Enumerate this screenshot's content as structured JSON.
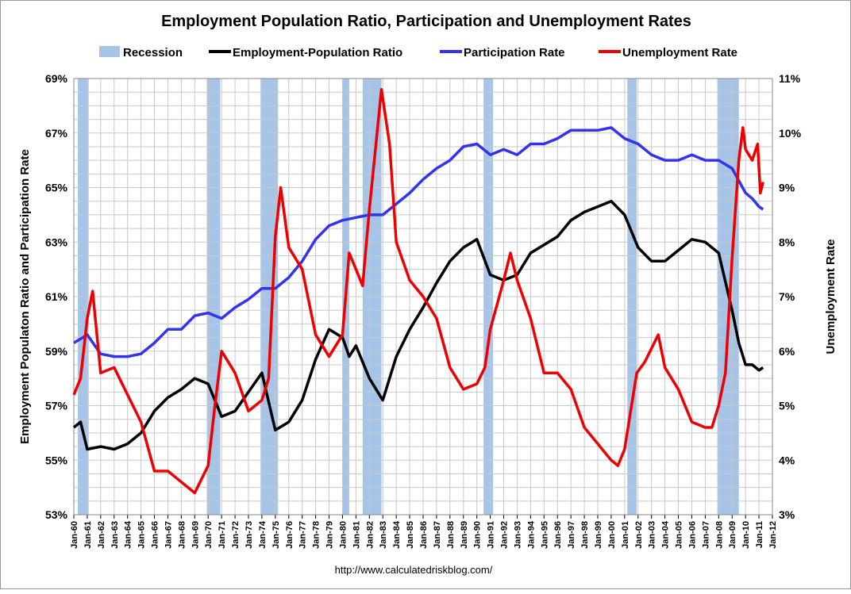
{
  "chart_data": {
    "type": "line",
    "title": "Employment Population Ratio, Participation and Unemployment Rates",
    "ylabel": "Employment Populaton Ratio and Participation Rate",
    "y2label": "Unemployment Rate",
    "footer": "http://www.calculatedriskblog.com/",
    "ylim": [
      53,
      69
    ],
    "y2lim": [
      3,
      11
    ],
    "yticks": [
      "53%",
      "55%",
      "57%",
      "59%",
      "61%",
      "63%",
      "65%",
      "67%",
      "69%"
    ],
    "y2ticks": [
      "3%",
      "4%",
      "5%",
      "6%",
      "7%",
      "8%",
      "9%",
      "10%",
      "11%"
    ],
    "xlim": [
      1960,
      2012
    ],
    "xticks": [
      "Jan-60",
      "Jan-61",
      "Jan-62",
      "Jan-63",
      "Jan-64",
      "Jan-65",
      "Jan-66",
      "Jan-67",
      "Jan-68",
      "Jan-69",
      "Jan-70",
      "Jan-71",
      "Jan-72",
      "Jan-73",
      "Jan-74",
      "Jan-75",
      "Jan-76",
      "Jan-77",
      "Jan-78",
      "Jan-79",
      "Jan-80",
      "Jan-81",
      "Jan-82",
      "Jan-83",
      "Jan-84",
      "Jan-85",
      "Jan-86",
      "Jan-87",
      "Jan-88",
      "Jan-89",
      "Jan-90",
      "Jan-91",
      "Jan-92",
      "Jan-93",
      "Jan-94",
      "Jan-95",
      "Jan-96",
      "Jan-97",
      "Jan-98",
      "Jan-99",
      "Jan-00",
      "Jan-01",
      "Jan-02",
      "Jan-03",
      "Jan-04",
      "Jan-05",
      "Jan-06",
      "Jan-07",
      "Jan-08",
      "Jan-09",
      "Jan-10",
      "Jan-11",
      "Jan-12"
    ],
    "grid": true,
    "legend_position": "top",
    "recession": {
      "name": "Recession",
      "color": "#A6C3E8",
      "periods": [
        [
          1960.3,
          1961.1
        ],
        [
          1969.9,
          1970.9
        ],
        [
          1973.9,
          1975.2
        ],
        [
          1980.0,
          1980.5
        ],
        [
          1981.5,
          1982.9
        ],
        [
          1990.5,
          1991.2
        ],
        [
          2001.2,
          2001.9
        ],
        [
          2007.9,
          2009.5
        ]
      ]
    },
    "series": [
      {
        "name": "Employment-Population Ratio",
        "color": "#000000",
        "axis": "left",
        "x": [
          1960,
          1960.5,
          1961,
          1962,
          1963,
          1964,
          1965,
          1966,
          1967,
          1968,
          1969,
          1970,
          1971,
          1972,
          1973,
          1974,
          1975,
          1976,
          1977,
          1978,
          1979,
          1980,
          1980.5,
          1981,
          1982,
          1983,
          1984,
          1985,
          1986,
          1987,
          1988,
          1989,
          1990,
          1991,
          1992,
          1993,
          1994,
          1995,
          1996,
          1997,
          1998,
          1999,
          2000,
          2001,
          2002,
          2003,
          2004,
          2005,
          2006,
          2007,
          2008,
          2009,
          2009.5,
          2010,
          2010.5,
          2011,
          2011.3
        ],
        "y": [
          56.2,
          56.4,
          55.4,
          55.5,
          55.4,
          55.6,
          56.0,
          56.8,
          57.3,
          57.6,
          58.0,
          57.8,
          56.6,
          56.8,
          57.5,
          58.2,
          56.1,
          56.4,
          57.2,
          58.7,
          59.8,
          59.5,
          58.8,
          59.2,
          58.0,
          57.2,
          58.8,
          59.8,
          60.6,
          61.5,
          62.3,
          62.8,
          63.1,
          61.8,
          61.6,
          61.8,
          62.6,
          62.9,
          63.2,
          63.8,
          64.1,
          64.3,
          64.5,
          64.0,
          62.8,
          62.3,
          62.3,
          62.7,
          63.1,
          63.0,
          62.6,
          60.5,
          59.3,
          58.5,
          58.5,
          58.3,
          58.4
        ]
      },
      {
        "name": "Participation Rate",
        "color": "#3333EE",
        "axis": "left",
        "x": [
          1960,
          1961,
          1962,
          1963,
          1964,
          1965,
          1966,
          1967,
          1968,
          1969,
          1970,
          1971,
          1972,
          1973,
          1974,
          1975,
          1976,
          1977,
          1978,
          1979,
          1980,
          1981,
          1982,
          1983,
          1984,
          1985,
          1986,
          1987,
          1988,
          1989,
          1990,
          1991,
          1992,
          1993,
          1994,
          1995,
          1996,
          1997,
          1998,
          1999,
          2000,
          2001,
          2002,
          2003,
          2004,
          2005,
          2006,
          2007,
          2008,
          2009,
          2010,
          2010.5,
          2011,
          2011.3
        ],
        "y": [
          59.3,
          59.6,
          58.9,
          58.8,
          58.8,
          58.9,
          59.3,
          59.8,
          59.8,
          60.3,
          60.4,
          60.2,
          60.6,
          60.9,
          61.3,
          61.3,
          61.7,
          62.3,
          63.1,
          63.6,
          63.8,
          63.9,
          64.0,
          64.0,
          64.4,
          64.8,
          65.3,
          65.7,
          66.0,
          66.5,
          66.6,
          66.2,
          66.4,
          66.2,
          66.6,
          66.6,
          66.8,
          67.1,
          67.1,
          67.1,
          67.2,
          66.8,
          66.6,
          66.2,
          66.0,
          66.0,
          66.2,
          66.0,
          66.0,
          65.7,
          64.8,
          64.6,
          64.3,
          64.2
        ]
      },
      {
        "name": "Unemployment Rate",
        "color": "#EE0000",
        "axis": "right",
        "x": [
          1960,
          1960.5,
          1961,
          1961.4,
          1962,
          1963,
          1964,
          1965,
          1966,
          1967,
          1968,
          1969,
          1970,
          1970.5,
          1971,
          1972,
          1973,
          1974,
          1974.5,
          1975,
          1975.4,
          1976,
          1977,
          1978,
          1979,
          1980,
          1980.5,
          1981,
          1981.5,
          1982,
          1982.9,
          1983.5,
          1984,
          1985,
          1986,
          1987,
          1988,
          1989,
          1990,
          1990.6,
          1991,
          1992,
          1992.5,
          1993,
          1994,
          1995,
          1996,
          1997,
          1998,
          1999,
          2000,
          2000.5,
          2001,
          2001.9,
          2002.5,
          2003.5,
          2004,
          2005,
          2006,
          2007,
          2007.5,
          2008,
          2008.5,
          2009,
          2009.5,
          2009.8,
          2010,
          2010.5,
          2010.9,
          2011.1,
          2011.3
        ],
        "y": [
          5.2,
          5.5,
          6.6,
          7.1,
          5.6,
          5.7,
          5.2,
          4.7,
          3.8,
          3.8,
          3.6,
          3.4,
          3.9,
          5.0,
          6.0,
          5.6,
          4.9,
          5.1,
          5.5,
          8.1,
          9.0,
          7.9,
          7.5,
          6.3,
          5.9,
          6.3,
          7.8,
          7.5,
          7.2,
          8.6,
          10.8,
          9.8,
          8.0,
          7.3,
          7.0,
          6.6,
          5.7,
          5.3,
          5.4,
          5.7,
          6.4,
          7.3,
          7.8,
          7.3,
          6.6,
          5.6,
          5.6,
          5.3,
          4.6,
          4.3,
          4.0,
          3.9,
          4.2,
          5.6,
          5.8,
          6.3,
          5.7,
          5.3,
          4.7,
          4.6,
          4.6,
          5.0,
          5.6,
          7.7,
          9.5,
          10.1,
          9.7,
          9.5,
          9.8,
          8.9,
          9.1
        ]
      }
    ]
  }
}
